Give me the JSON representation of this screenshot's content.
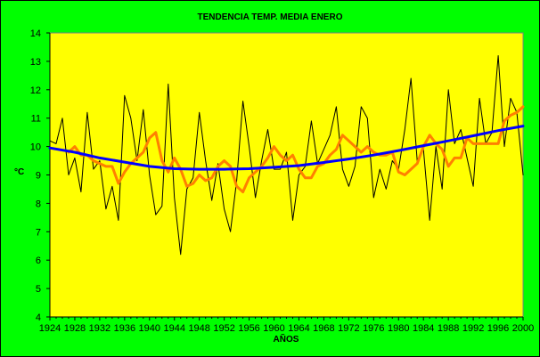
{
  "chart_data": {
    "type": "line",
    "title": "TENDENCIA TEMP. MEDIA ENERO",
    "xlabel": "AÑOS",
    "ylabel": "°C",
    "xlim": [
      1924,
      2000
    ],
    "ylim": [
      4,
      14
    ],
    "x_ticks": [
      1924,
      1928,
      1932,
      1936,
      1940,
      1944,
      1948,
      1952,
      1956,
      1960,
      1964,
      1968,
      1972,
      1976,
      1980,
      1984,
      1988,
      1992,
      1996,
      2000
    ],
    "y_ticks": [
      4,
      5,
      6,
      7,
      8,
      9,
      10,
      11,
      12,
      13,
      14
    ],
    "grid": false,
    "background": "#ffff00",
    "page_background": "#00ff00",
    "series": [
      {
        "color": "#000000",
        "x": [
          1924,
          1925,
          1926,
          1927,
          1928,
          1929,
          1930,
          1931,
          1932,
          1933,
          1934,
          1935,
          1936,
          1937,
          1938,
          1939,
          1940,
          1941,
          1942,
          1943,
          1944,
          1945,
          1946,
          1947,
          1948,
          1949,
          1950,
          1951,
          1952,
          1953,
          1954,
          1955,
          1956,
          1957,
          1958,
          1959,
          1960,
          1961,
          1962,
          1963,
          1964,
          1965,
          1966,
          1967,
          1968,
          1969,
          1970,
          1971,
          1972,
          1973,
          1974,
          1975,
          1976,
          1977,
          1978,
          1979,
          1980,
          1981,
          1982,
          1983,
          1984,
          1985,
          1986,
          1987,
          1988,
          1989,
          1990,
          1991,
          1992,
          1993,
          1994,
          1995,
          1996,
          1997,
          1998,
          1999,
          2000
        ],
        "values": [
          10.2,
          10.1,
          11.0,
          9.0,
          9.6,
          8.4,
          11.2,
          9.2,
          9.5,
          7.8,
          8.6,
          7.4,
          11.8,
          11.0,
          9.5,
          11.3,
          9.0,
          7.6,
          7.9,
          12.2,
          8.2,
          6.2,
          8.5,
          8.9,
          11.2,
          9.5,
          8.1,
          9.4,
          7.8,
          7.0,
          8.8,
          11.6,
          10.0,
          8.2,
          9.5,
          10.6,
          9.2,
          9.2,
          9.8,
          7.4,
          9.0,
          9.3,
          10.9,
          9.4,
          9.9,
          10.4,
          11.4,
          9.2,
          8.6,
          9.3,
          11.4,
          11.0,
          8.2,
          9.2,
          8.5,
          9.5,
          9.2,
          10.6,
          12.4,
          9.5,
          9.9,
          7.4,
          10.0,
          8.5,
          12.0,
          10.1,
          10.6,
          9.6,
          8.6,
          11.7,
          10.1,
          10.5,
          13.2,
          10.0,
          11.7,
          11.2,
          9.0
        ]
      },
      {
        "color": "#ff8000",
        "x": [
          1927,
          1928,
          1929,
          1930,
          1931,
          1932,
          1933,
          1934,
          1935,
          1936,
          1937,
          1938,
          1939,
          1940,
          1941,
          1942,
          1943,
          1944,
          1945,
          1946,
          1947,
          1948,
          1949,
          1950,
          1951,
          1952,
          1953,
          1954,
          1955,
          1956,
          1957,
          1958,
          1959,
          1960,
          1961,
          1962,
          1963,
          1964,
          1965,
          1966,
          1967,
          1968,
          1969,
          1970,
          1971,
          1972,
          1973,
          1974,
          1975,
          1976,
          1977,
          1978,
          1979,
          1980,
          1981,
          1982,
          1983,
          1984,
          1985,
          1986,
          1987,
          1988,
          1989,
          1990,
          1991,
          1992,
          1993,
          1994,
          1995,
          1996,
          1997,
          1998,
          1999,
          2000
        ],
        "values": [
          9.8,
          10.0,
          9.7,
          9.7,
          9.5,
          9.4,
          9.3,
          9.3,
          8.7,
          9.1,
          9.4,
          9.6,
          9.8,
          10.3,
          10.5,
          9.5,
          9.1,
          9.6,
          9.2,
          8.6,
          8.7,
          9.0,
          8.8,
          8.9,
          9.3,
          9.5,
          9.3,
          8.6,
          8.4,
          8.9,
          9.1,
          9.3,
          9.6,
          10.0,
          9.7,
          9.5,
          9.7,
          9.2,
          8.9,
          8.9,
          9.3,
          9.4,
          9.7,
          9.9,
          10.4,
          10.2,
          10.0,
          9.8,
          10.0,
          9.8,
          9.7,
          9.7,
          9.8,
          9.1,
          9.0,
          9.2,
          9.4,
          10.0,
          10.4,
          10.1,
          9.9,
          9.3,
          9.6,
          9.6,
          10.3,
          10.1,
          10.1,
          10.1,
          10.1,
          10.1,
          10.9,
          11.1,
          11.2,
          11.4
        ]
      },
      {
        "color": "#0000ff",
        "x": [
          1924,
          1928,
          1932,
          1936,
          1940,
          1944,
          1948,
          1952,
          1956,
          1960,
          1964,
          1968,
          1972,
          1976,
          1980,
          1984,
          1988,
          1992,
          1996,
          2000
        ],
        "values": [
          9.95,
          9.8,
          9.6,
          9.45,
          9.3,
          9.22,
          9.2,
          9.2,
          9.22,
          9.27,
          9.33,
          9.44,
          9.56,
          9.7,
          9.86,
          10.03,
          10.2,
          10.38,
          10.56,
          10.72
        ]
      }
    ]
  }
}
